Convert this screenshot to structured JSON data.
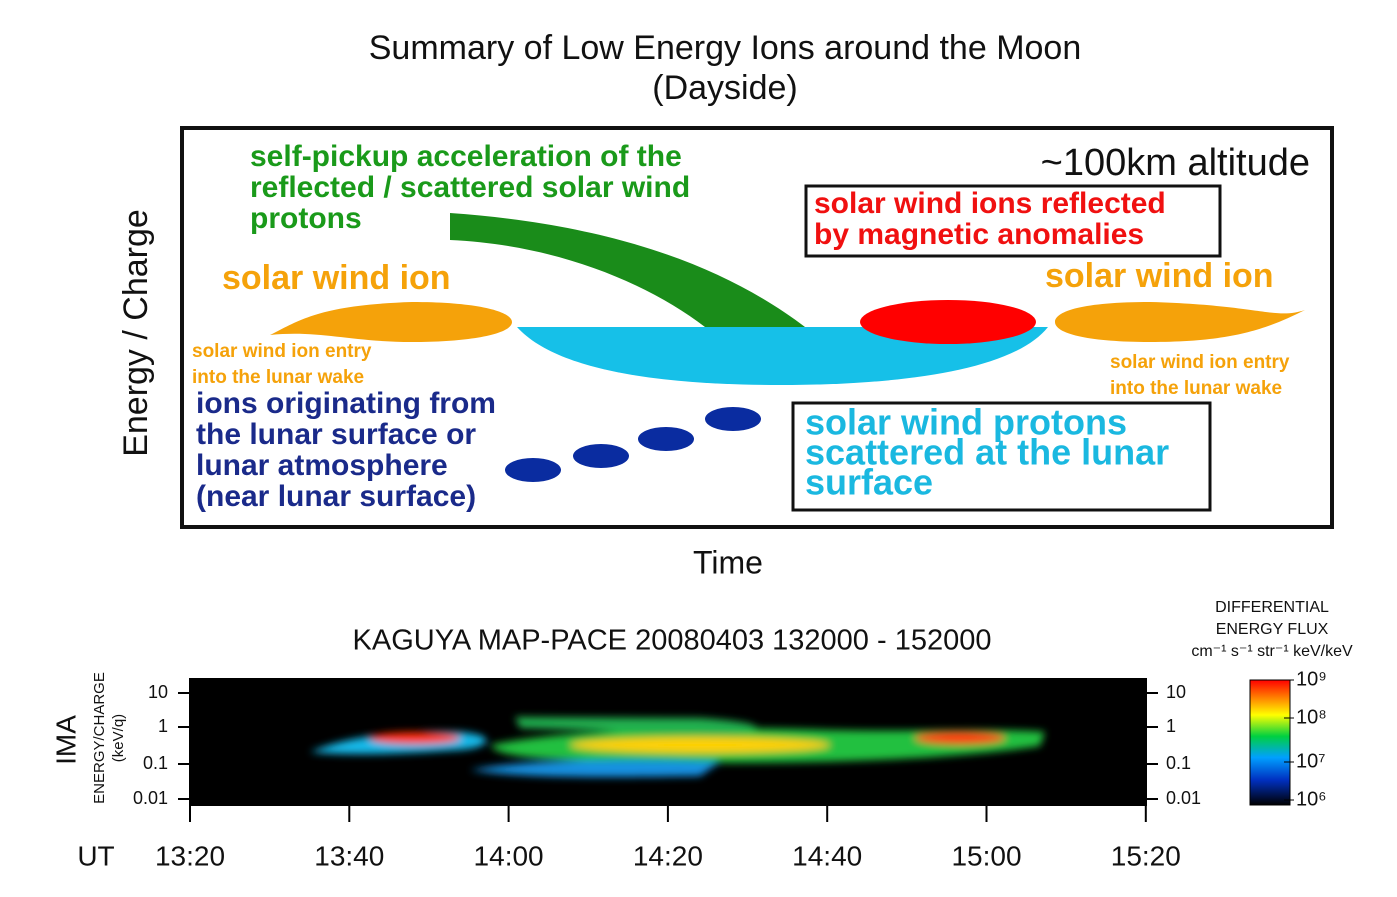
{
  "header": {
    "title": [
      "Summary of Low Energy Ions around the Moon",
      "(Dayside)"
    ]
  },
  "diagram": {
    "y_axis_label": "Energy / Charge",
    "x_axis_label": "Time",
    "altitude": "~100km altitude",
    "labels": {
      "self_pickup": [
        "self-pickup acceleration of the",
        "reflected / scattered solar wind",
        "protons"
      ],
      "reflected": [
        "solar wind ions reflected",
        "by magnetic  anomalies"
      ],
      "solar_wind_left": "solar wind ion",
      "solar_wind_right": "solar wind ion",
      "entry_left": [
        "solar wind ion entry",
        "into the lunar wake"
      ],
      "entry_right": [
        "solar wind ion entry",
        "into the lunar wake"
      ],
      "surface_ions": [
        "ions originating from",
        " the lunar surface or",
        "lunar atmosphere",
        "(near lunar surface)"
      ],
      "scattered": [
        "solar wind protons",
        "scattered at the lunar",
        "surface"
      ]
    }
  },
  "spectrogram": {
    "title": "KAGUYA MAP-PACE  20080403  132000 - 152000",
    "instrument": "IMA",
    "y_label": [
      "ENERGY/CHARGE",
      "(keV/q)"
    ],
    "y_ticks": [
      "10",
      "1",
      "0.1",
      "0.01"
    ],
    "x_label": "UT",
    "x_ticks": [
      "13:20",
      "13:40",
      "14:00",
      "14:20",
      "14:40",
      "15:00",
      "15:20"
    ],
    "colorbar": {
      "title": [
        "DIFFERENTIAL",
        "ENERGY FLUX",
        "cm⁻¹ s⁻¹ str⁻¹ keV/keV"
      ],
      "ticks": [
        "10⁹",
        "10⁸",
        "10⁷",
        "10⁶"
      ]
    }
  }
}
